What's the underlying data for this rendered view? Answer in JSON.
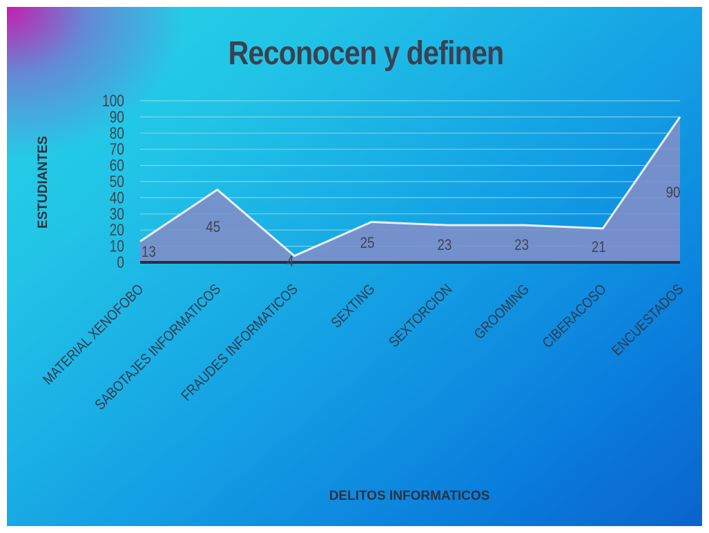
{
  "chart_data": {
    "type": "area",
    "title": "Reconocen y definen",
    "xlabel": "DELITOS INFORMATICOS",
    "ylabel": "ESTUDIANTES",
    "categories": [
      "MATERIAL XENOFOBO",
      "SABOTAJES INFORMATICOS",
      "FRAUDES INFORMATICOS",
      "SEXTING",
      "SEXTORCION",
      "GROOMING",
      "CIBERACOSO",
      "ENCUESTADOS"
    ],
    "values": [
      13,
      45,
      4,
      25,
      23,
      23,
      21,
      90
    ],
    "data_labels": [
      "13",
      "45",
      "4",
      "25",
      "23",
      "23",
      "21",
      "90"
    ],
    "ylim": [
      0,
      100
    ],
    "yticks": [
      "0",
      "10",
      "20",
      "30",
      "40",
      "50",
      "60",
      "70",
      "80",
      "90",
      "100"
    ],
    "grid": true,
    "legend": "none",
    "colors": {
      "area_fill": "#7d8fc9",
      "area_line": "#e8eef8",
      "gridline": "#8fd8ea",
      "baseline": "#26303e"
    }
  }
}
